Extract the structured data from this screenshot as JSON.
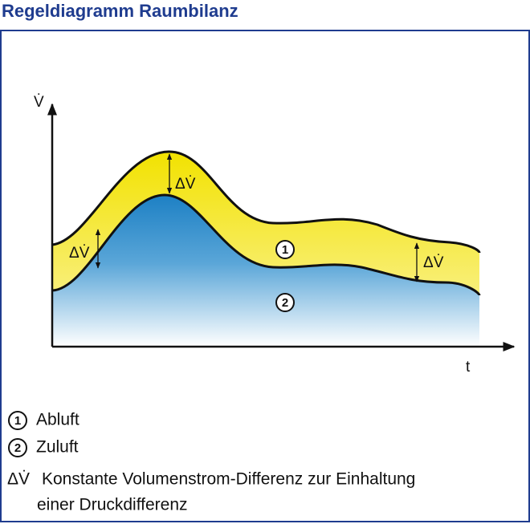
{
  "header": {
    "title": "Regeldiagramm Raumbilanz"
  },
  "diagram": {
    "y_label": "V̇",
    "x_label": "t",
    "delta_labels": [
      "ΔV̇",
      "ΔV̇",
      "ΔV̇"
    ],
    "curve_labels": [
      "1",
      "2"
    ]
  },
  "legend": {
    "items": [
      {
        "symbol": "1",
        "text_lines": [
          "Abluft"
        ]
      },
      {
        "symbol": "2",
        "text_lines": [
          "Zuluft"
        ]
      },
      {
        "symbol": "ΔV̇",
        "text_lines": [
          "Konstante Volumenstrom-Differenz zur Einhaltung",
          "einer Druckdifferenz"
        ]
      }
    ]
  }
}
